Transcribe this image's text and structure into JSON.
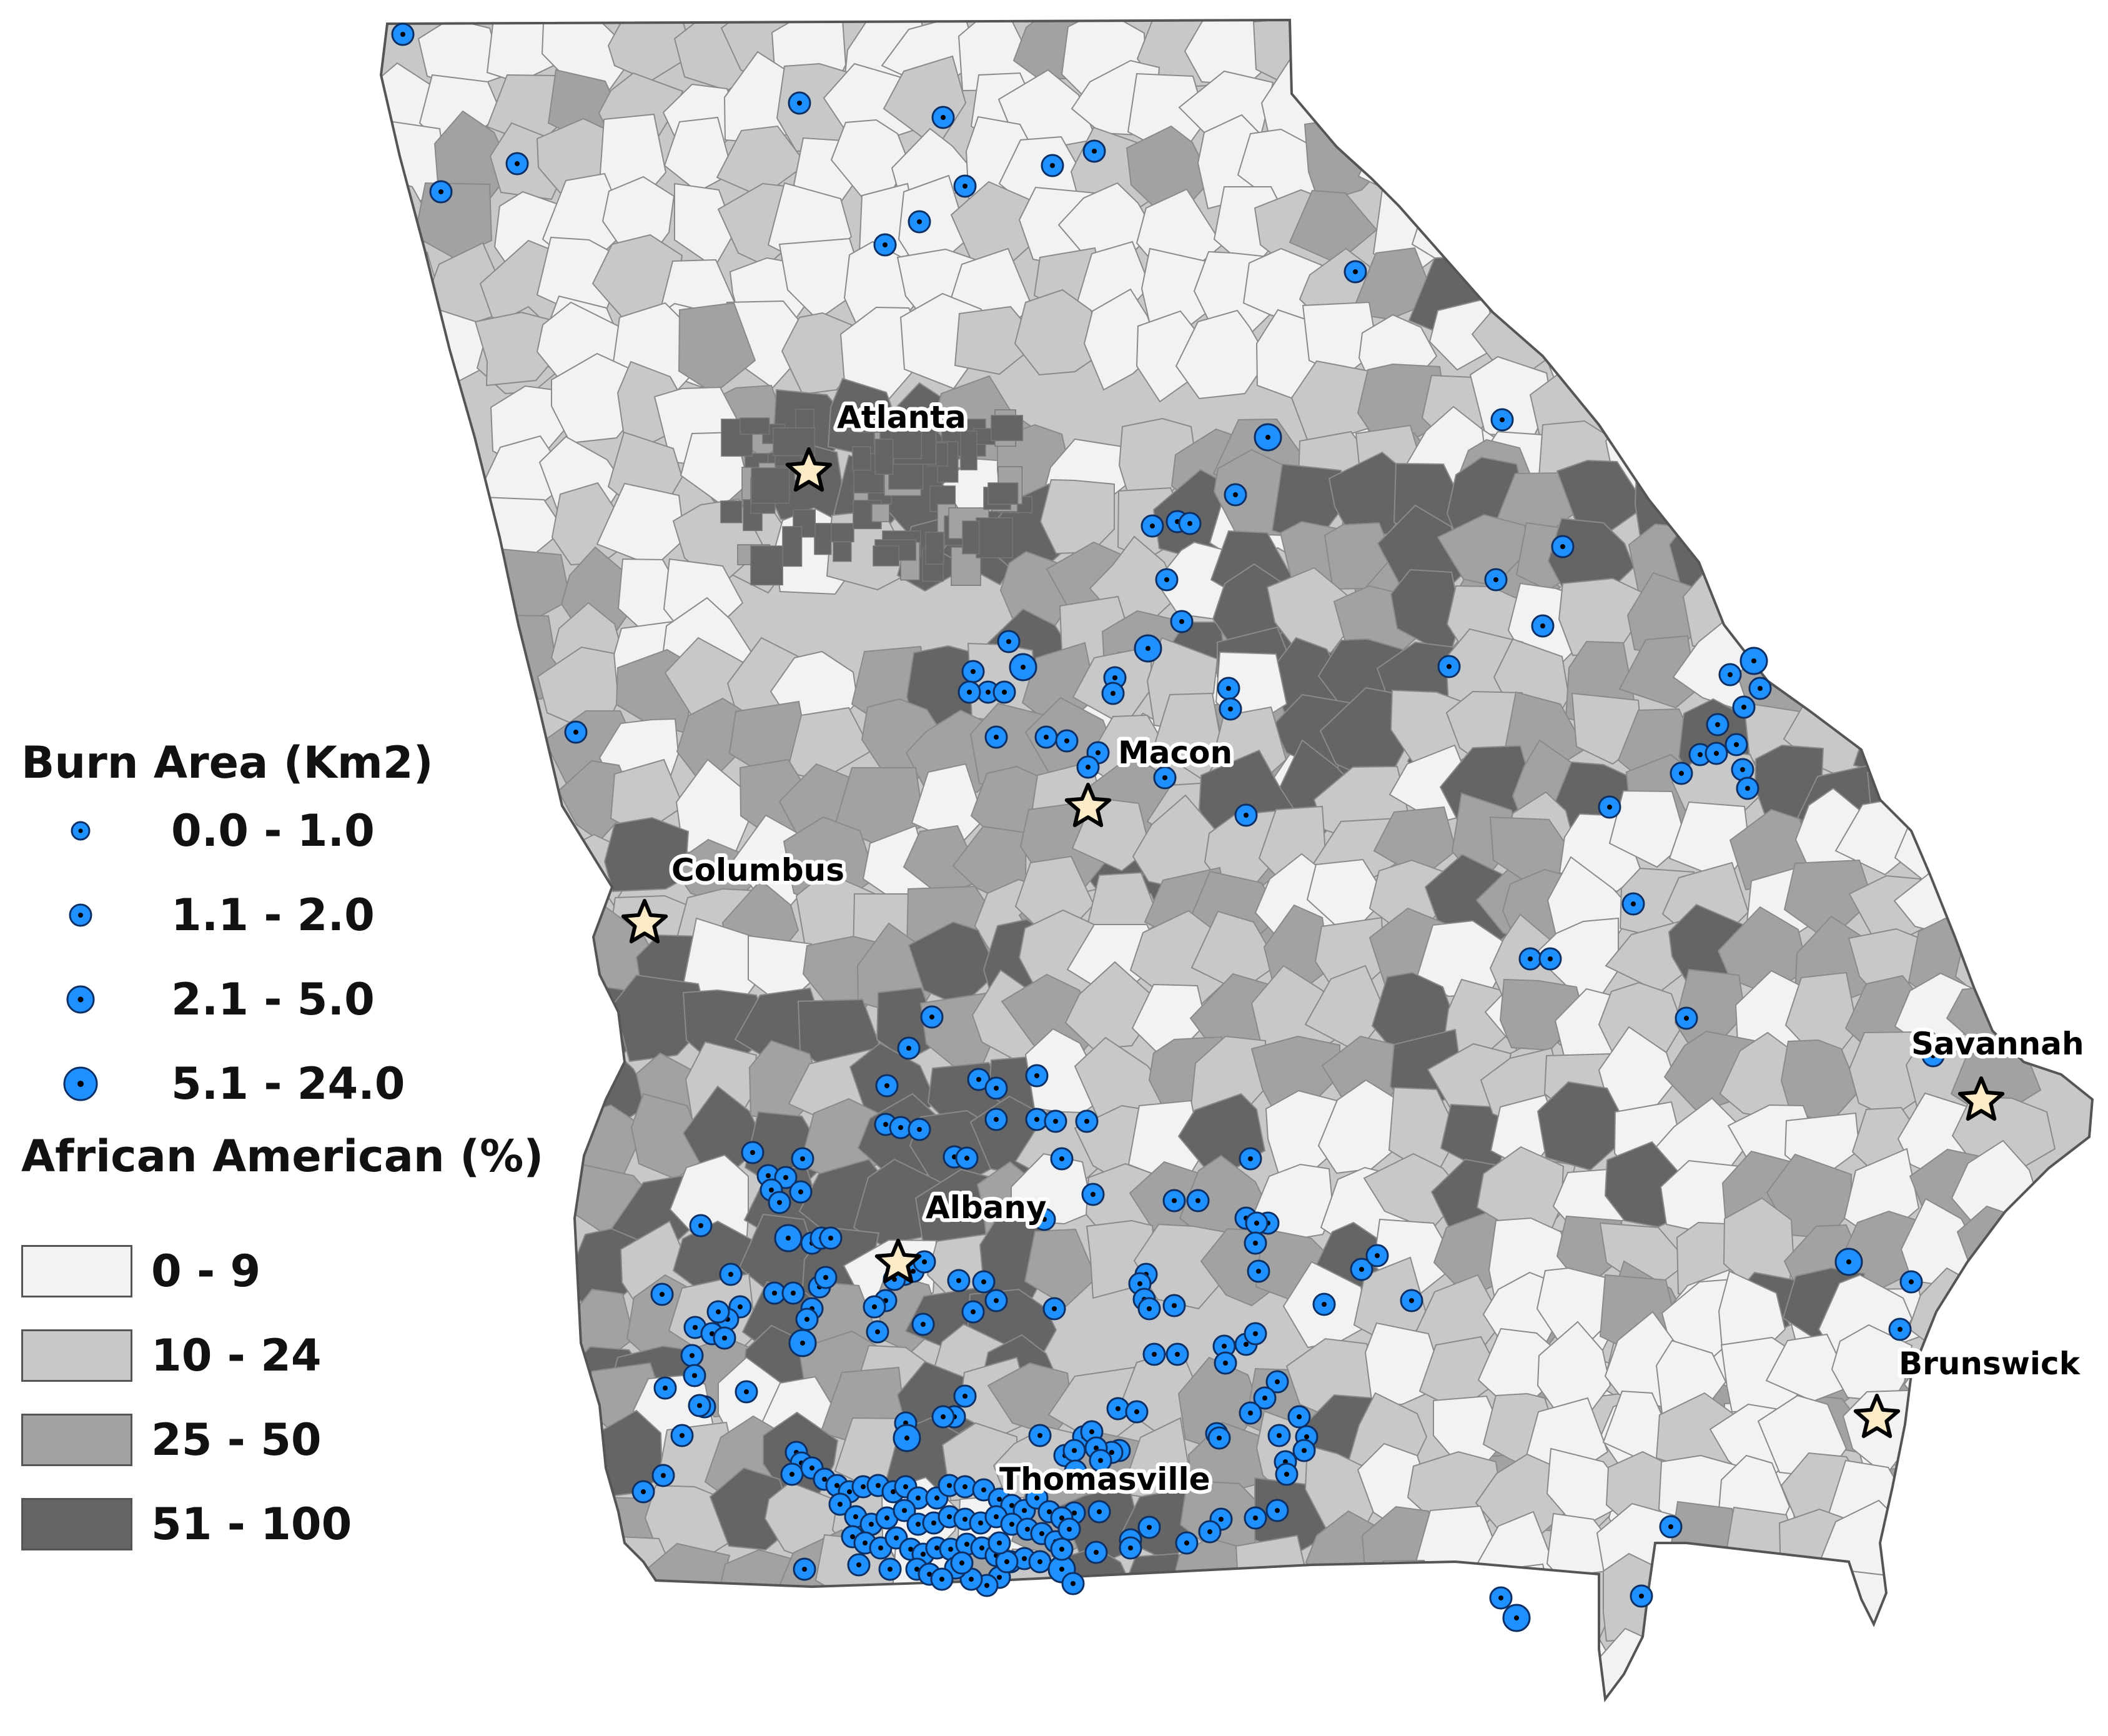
{
  "map": {
    "cities": [
      {
        "name": "Atlanta"
      },
      {
        "name": "Macon"
      },
      {
        "name": "Columbus"
      },
      {
        "name": "Albany"
      },
      {
        "name": "Savannah"
      },
      {
        "name": "Brunswick"
      },
      {
        "name": "Thomasville"
      }
    ],
    "fill_colors": [
      "#f2f2f2",
      "#c8c8c8",
      "#a2a2a2",
      "#656565"
    ],
    "marker_color": "#1e90ff",
    "star_color": "#fbecc7"
  },
  "legend": {
    "burn_title": "Burn Area (Km2)",
    "burn_classes": [
      {
        "label": "0.0 - 1.0"
      },
      {
        "label": "1.1 - 2.0"
      },
      {
        "label": "2.1 - 5.0"
      },
      {
        "label": "5.1 - 24.0"
      }
    ],
    "aa_title": "African American (%)",
    "aa_classes": [
      {
        "label": "0 - 9",
        "color": "#f2f2f2"
      },
      {
        "label": "10 - 24",
        "color": "#c8c8c8"
      },
      {
        "label": "25 - 50",
        "color": "#a2a2a2"
      },
      {
        "label": "51 - 100",
        "color": "#656565"
      }
    ]
  }
}
